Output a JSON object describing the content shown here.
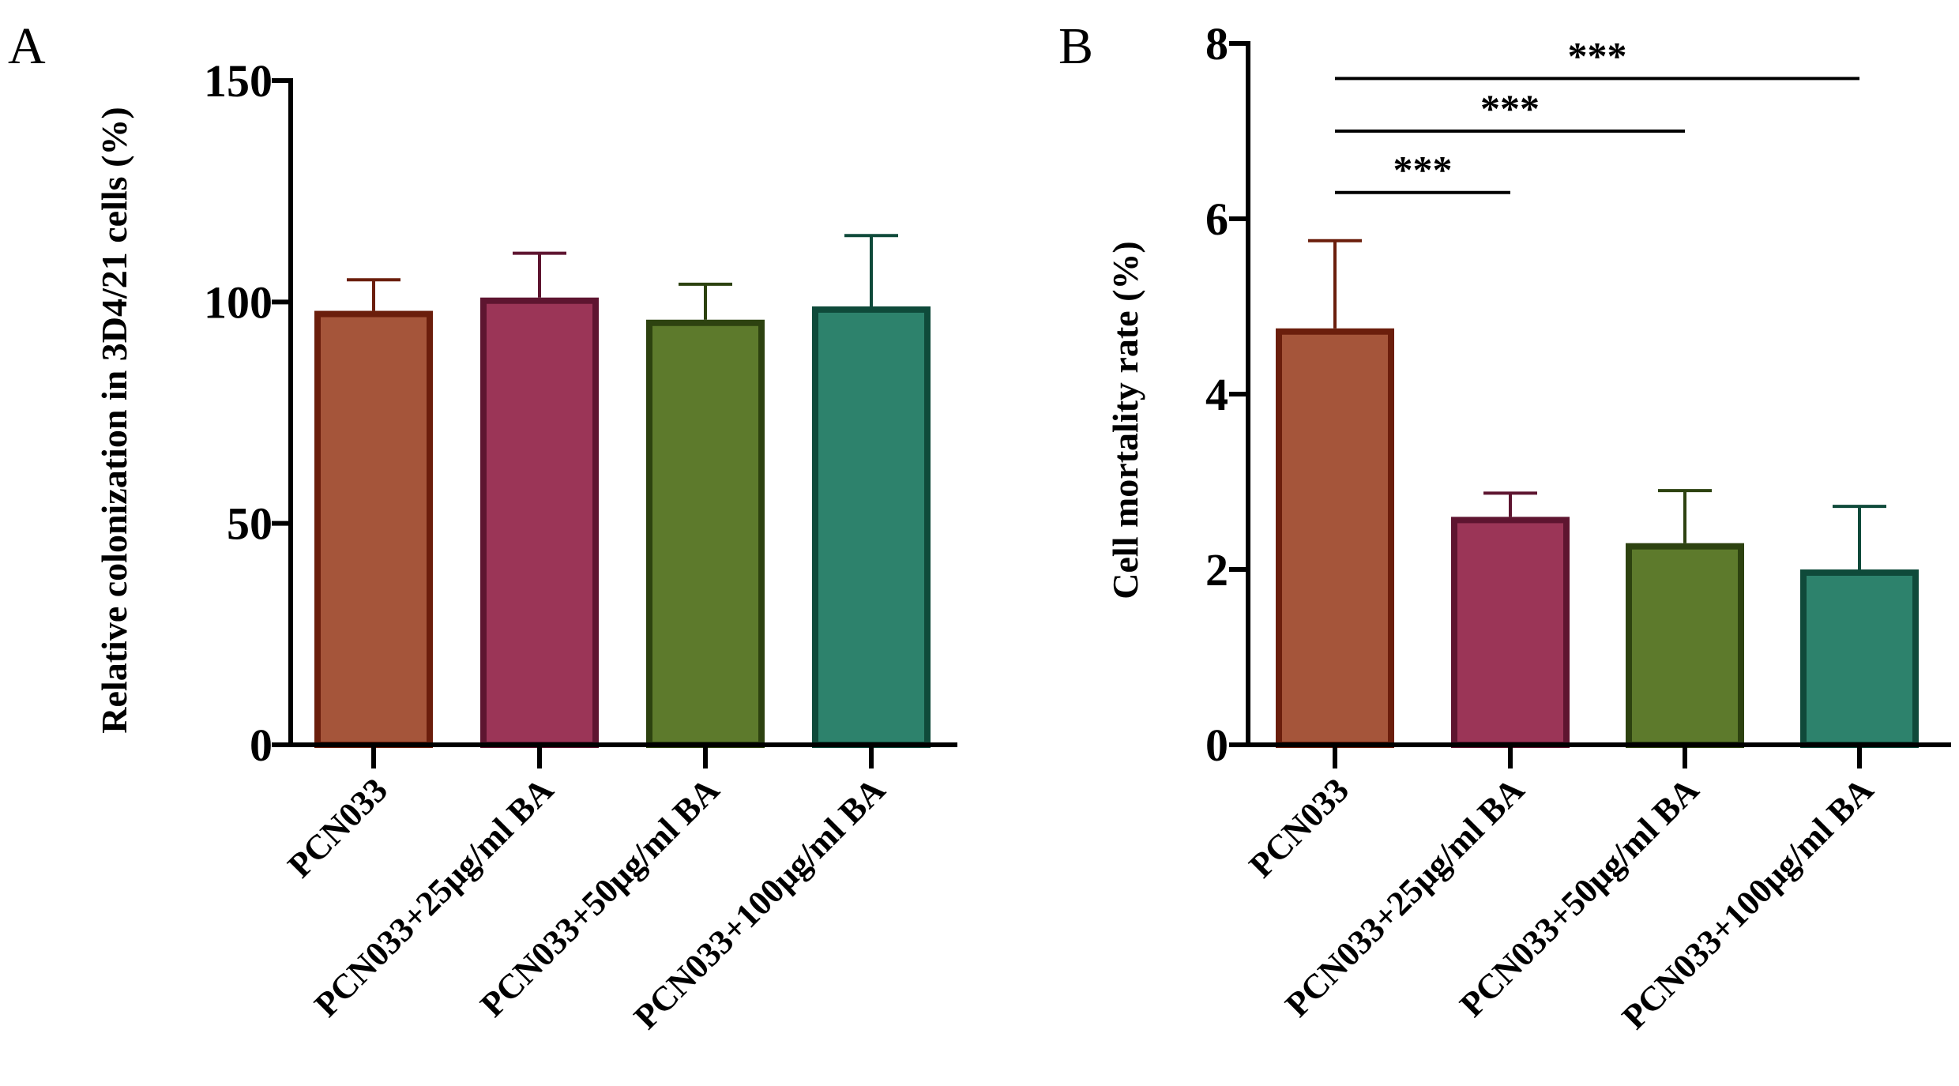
{
  "chart_data": [
    {
      "panel": "A",
      "type": "bar",
      "title": "",
      "xlabel": "",
      "ylabel": "Relative colonization in 3D4/21 cells (%)",
      "ylim": [
        0,
        150
      ],
      "yticks": [
        0,
        50,
        100,
        150
      ],
      "ytick_labels": [
        "0",
        "50",
        "100",
        "150"
      ],
      "grid": false,
      "categories": [
        "PCN033",
        "PCN033+25μg/ml BA",
        "PCN033+50μg/ml BA",
        "PCN033+100μg/ml BA"
      ],
      "values": [
        98,
        101,
        96,
        99
      ],
      "errors": [
        7,
        10,
        8,
        16
      ],
      "bar_colors": [
        "#a5553a",
        "#9b3557",
        "#5d7a2c",
        "#2d826c"
      ],
      "edge_colors": [
        "#6b1e0c",
        "#5e1530",
        "#2d4210",
        "#0f4a3a"
      ],
      "significance": []
    },
    {
      "panel": "B",
      "type": "bar",
      "title": "",
      "xlabel": "",
      "ylabel": "Cell mortality rate (%)",
      "ylim": [
        0,
        8
      ],
      "yticks": [
        0,
        2,
        4,
        6,
        8
      ],
      "ytick_labels": [
        "0",
        "2",
        "4",
        "6",
        "8"
      ],
      "grid": false,
      "categories": [
        "PCN033",
        "PCN033+25μg/ml BA",
        "PCN033+50μg/ml BA",
        "PCN033+100μg/ml BA"
      ],
      "values": [
        4.75,
        2.6,
        2.3,
        2.0
      ],
      "errors": [
        1.0,
        0.27,
        0.6,
        0.72
      ],
      "bar_colors": [
        "#a5553a",
        "#9b3557",
        "#5d7a2c",
        "#2d826c"
      ],
      "edge_colors": [
        "#6b1e0c",
        "#5e1530",
        "#2d4210",
        "#0f4a3a"
      ],
      "significance": [
        {
          "from": 0,
          "to": 1,
          "label": "***",
          "y": 6.3
        },
        {
          "from": 0,
          "to": 2,
          "label": "***",
          "y": 7.0
        },
        {
          "from": 0,
          "to": 3,
          "label": "***",
          "y": 7.6
        }
      ]
    }
  ]
}
